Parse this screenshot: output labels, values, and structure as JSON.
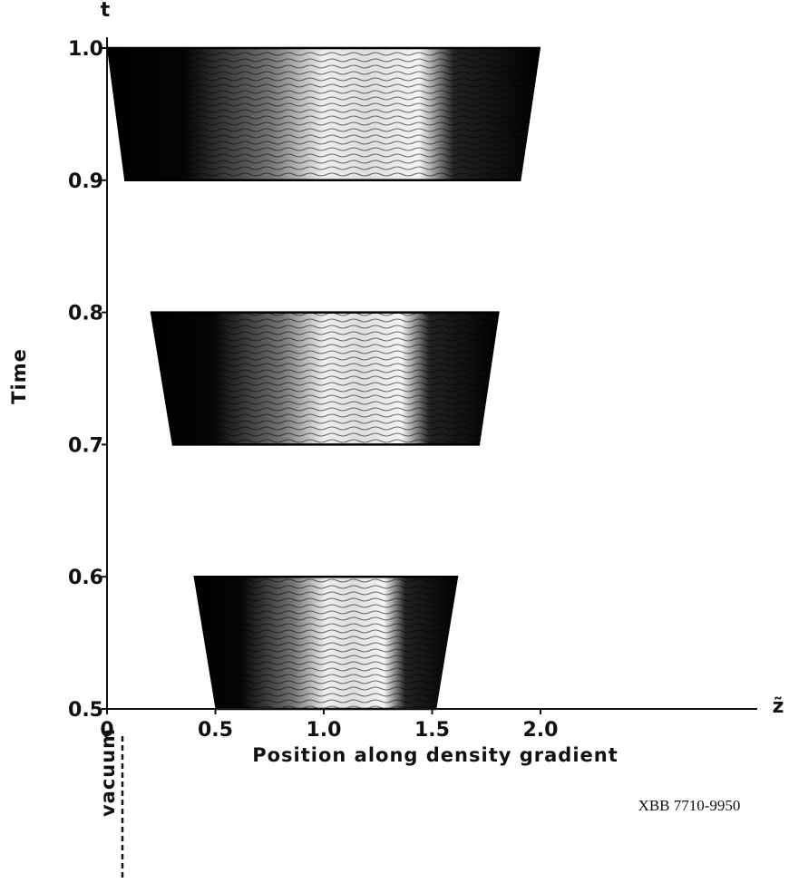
{
  "chart_data": {
    "type": "trapezoid",
    "x_symbol": "z̃",
    "y_symbol": "t̃",
    "y_title": "Time",
    "x_title": "Position along density gradient",
    "boundary_label": "vacuum",
    "figure_code": "XBB 7710-9950",
    "xlim": [
      0,
      3
    ],
    "xticks": [
      0,
      0.5,
      {
        "value": 1,
        "label": "1.0"
      },
      1.5,
      {
        "value": 2,
        "label": "2.0"
      }
    ],
    "ylim": [
      0.5,
      1
    ],
    "yticks": [
      0.5,
      0.6,
      0.7,
      0.8,
      0.9,
      {
        "value": 1,
        "label": "1.0"
      }
    ],
    "panels": [
      {
        "t": [
          0.5,
          0.6
        ],
        "z_bottom": [
          0.5,
          1.52
        ],
        "z_top": [
          0.4,
          1.62
        ]
      },
      {
        "t": [
          0.7,
          0.8
        ],
        "z_bottom": [
          0.3,
          1.72
        ],
        "z_top": [
          0.2,
          1.81
        ]
      },
      {
        "t": [
          0.9,
          1
        ],
        "z_bottom": [
          0.08,
          1.91
        ],
        "z_top": [
          0,
          2
        ]
      }
    ]
  }
}
